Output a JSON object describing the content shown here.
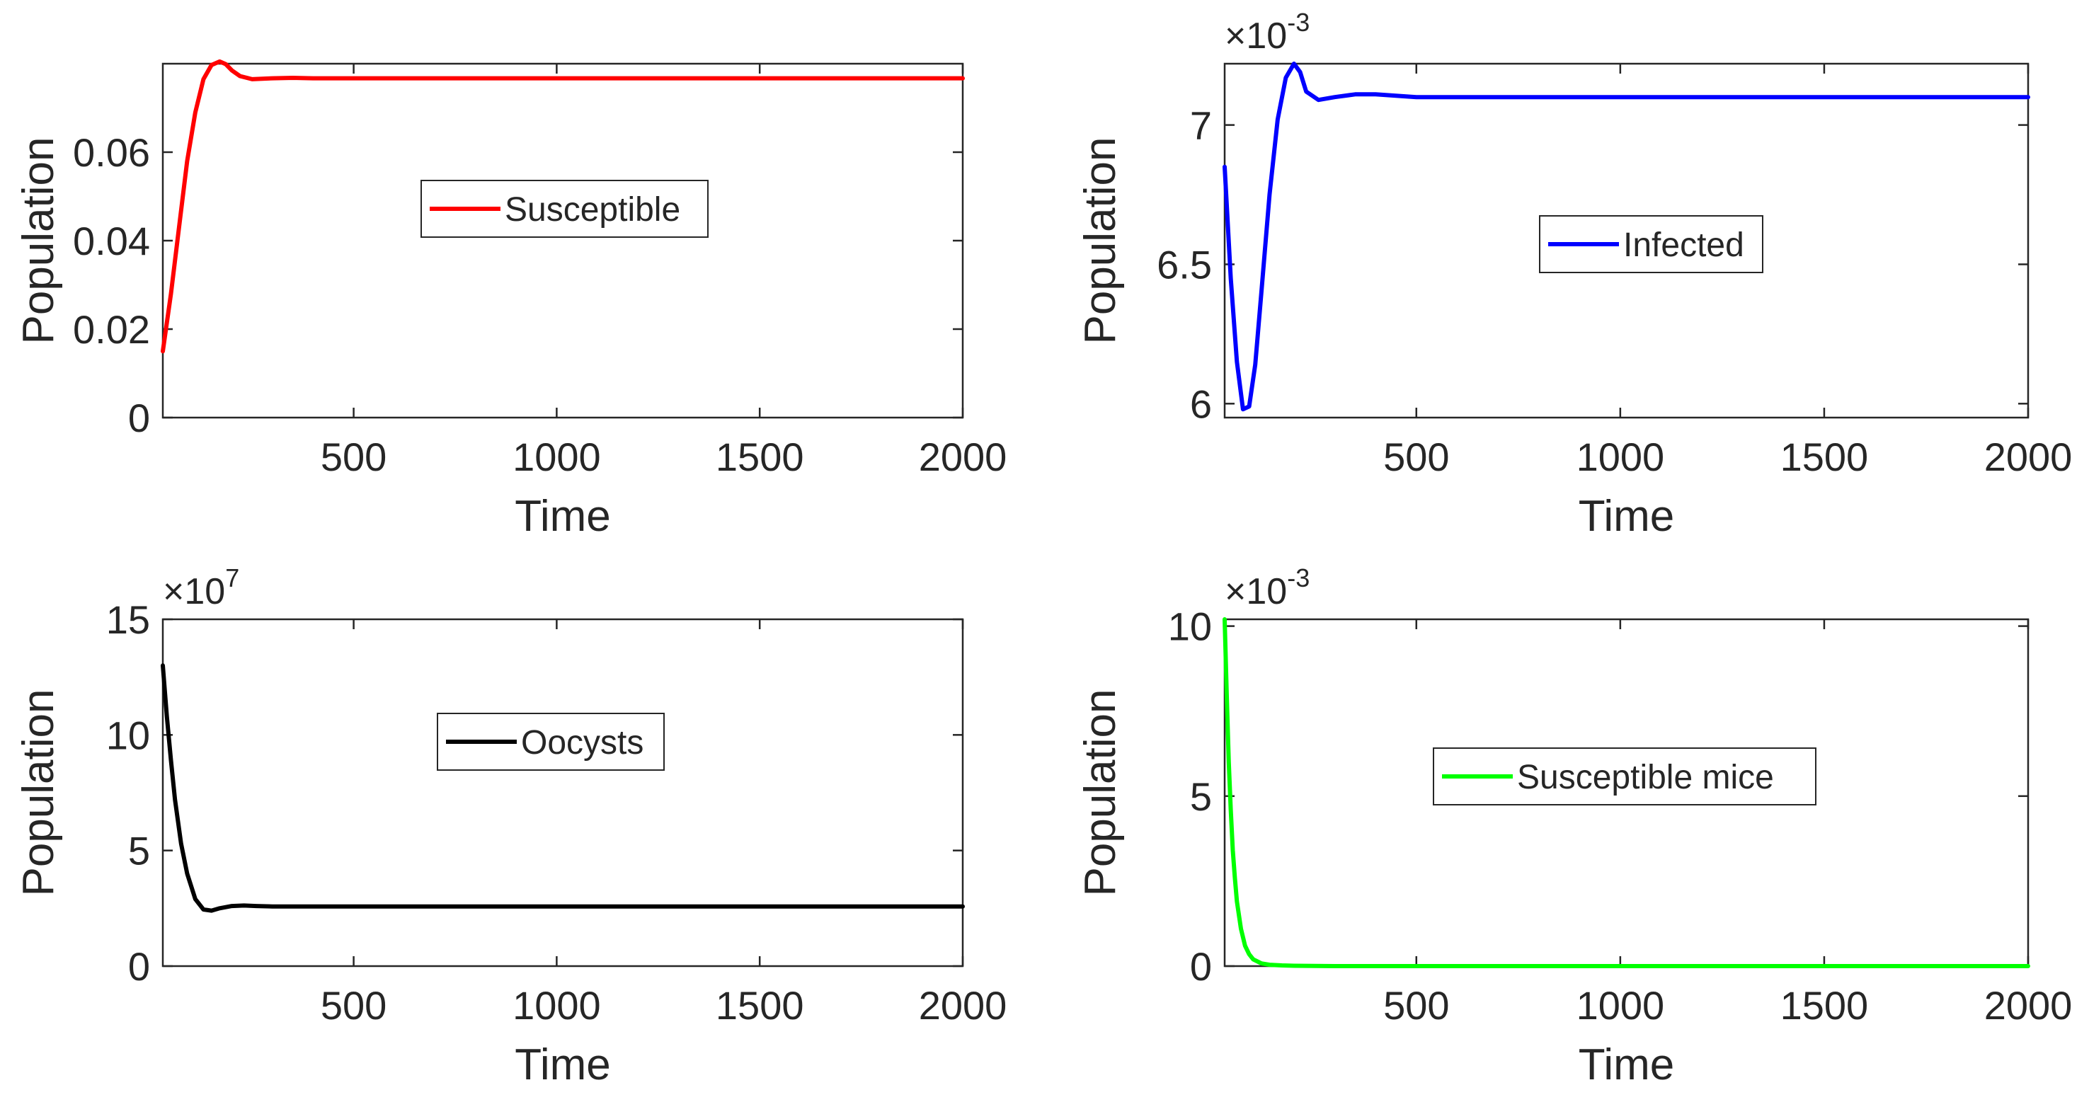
{
  "chart_data": [
    {
      "type": "line",
      "title": "",
      "xlabel": "Time",
      "ylabel": "Population",
      "xlim": [
        30,
        2000
      ],
      "ylim": [
        0,
        0.08
      ],
      "xticks": [
        500,
        1000,
        1500,
        2000
      ],
      "yticks": [
        0,
        0.02,
        0.04,
        0.06
      ],
      "ytick_labels": [
        "0",
        "0.02",
        "0.04",
        "0.06"
      ],
      "exponent_label": null,
      "grid": false,
      "legend_position": "center",
      "series": [
        {
          "name": "Susceptible",
          "color": "#ff0000",
          "x": [
            30,
            50,
            70,
            90,
            110,
            130,
            150,
            170,
            185,
            200,
            220,
            250,
            300,
            350,
            400,
            500,
            1000,
            1500,
            2000
          ],
          "y": [
            0.015,
            0.028,
            0.043,
            0.058,
            0.069,
            0.0765,
            0.0797,
            0.0805,
            0.0799,
            0.0785,
            0.0772,
            0.0765,
            0.0767,
            0.0768,
            0.0767,
            0.0767,
            0.0767,
            0.0767,
            0.0767
          ]
        }
      ]
    },
    {
      "type": "line",
      "title": "",
      "xlabel": "Time",
      "ylabel": "Population",
      "xlim": [
        30,
        2000
      ],
      "ylim": [
        5.95,
        7.22
      ],
      "xticks": [
        500,
        1000,
        1500,
        2000
      ],
      "yticks": [
        6,
        6.5,
        7
      ],
      "ytick_labels": [
        "6",
        "6.5",
        "7"
      ],
      "exponent_label": {
        "base": "×10",
        "power": "-3"
      },
      "grid": false,
      "legend_position": "center",
      "series": [
        {
          "name": "Infected",
          "color": "#0000ff",
          "x": [
            30,
            45,
            60,
            75,
            90,
            105,
            120,
            140,
            160,
            180,
            200,
            215,
            230,
            260,
            300,
            350,
            400,
            500,
            700,
            1000,
            1500,
            2000
          ],
          "y": [
            6.85,
            6.45,
            6.15,
            5.98,
            5.99,
            6.14,
            6.4,
            6.75,
            7.02,
            7.17,
            7.22,
            7.19,
            7.12,
            7.09,
            7.1,
            7.11,
            7.11,
            7.1,
            7.1,
            7.1,
            7.1,
            7.1
          ]
        }
      ]
    },
    {
      "type": "line",
      "title": "",
      "xlabel": "Time",
      "ylabel": "Population",
      "xlim": [
        30,
        2000
      ],
      "ylim": [
        0,
        15
      ],
      "xticks": [
        500,
        1000,
        1500,
        2000
      ],
      "yticks": [
        0,
        5,
        10,
        15
      ],
      "ytick_labels": [
        "0",
        "5",
        "10",
        "15"
      ],
      "exponent_label": {
        "base": "×10",
        "power": "7"
      },
      "grid": false,
      "legend_position": "center",
      "series": [
        {
          "name": "Oocysts",
          "color": "#000000",
          "x": [
            30,
            40,
            50,
            60,
            75,
            90,
            110,
            130,
            150,
            170,
            200,
            230,
            260,
            300,
            400,
            500,
            1000,
            1500,
            2000
          ],
          "y": [
            13.0,
            10.8,
            8.9,
            7.2,
            5.3,
            4.0,
            2.9,
            2.45,
            2.4,
            2.5,
            2.6,
            2.62,
            2.6,
            2.58,
            2.58,
            2.58,
            2.58,
            2.58,
            2.58
          ]
        }
      ]
    },
    {
      "type": "line",
      "title": "",
      "xlabel": "Time",
      "ylabel": "Population",
      "xlim": [
        30,
        2000
      ],
      "ylim": [
        0,
        10.2
      ],
      "xticks": [
        500,
        1000,
        1500,
        2000
      ],
      "yticks": [
        0,
        5,
        10
      ],
      "ytick_labels": [
        "0",
        "5",
        "10"
      ],
      "exponent_label": {
        "base": "×10",
        "power": "-3"
      },
      "grid": false,
      "legend_position": "center",
      "series": [
        {
          "name": "Susceptible mice",
          "color": "#00ff00",
          "x": [
            30,
            35,
            40,
            45,
            50,
            55,
            60,
            70,
            80,
            90,
            100,
            120,
            140,
            170,
            200,
            300,
            500,
            1000,
            1500,
            2000
          ],
          "y": [
            10.2,
            8.0,
            6.0,
            4.6,
            3.4,
            2.6,
            1.9,
            1.1,
            0.6,
            0.35,
            0.2,
            0.08,
            0.04,
            0.02,
            0.01,
            0.0,
            0.0,
            0.0,
            0.0,
            0.0
          ]
        }
      ]
    }
  ]
}
